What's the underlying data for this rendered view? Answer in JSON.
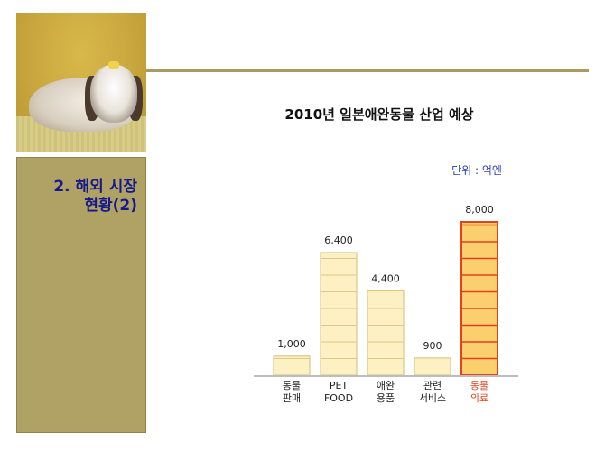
{
  "sidebar": {
    "title_line1": "2. 해외 시장",
    "title_line2": "현황(2)"
  },
  "chart_data": {
    "type": "bar",
    "title": "2010년 일본애완동물 산업 예상",
    "unit": "단위 : 억엔",
    "categories": [
      [
        "동물",
        "판매"
      ],
      [
        "PET",
        "FOOD"
      ],
      [
        "애완",
        "용품"
      ],
      [
        "관련",
        "서비스"
      ],
      [
        "동물",
        "의료"
      ]
    ],
    "values": [
      1000,
      6400,
      4400,
      900,
      8000
    ],
    "value_labels": [
      "1,000",
      "6,400",
      "4,400",
      "900",
      "8,000"
    ],
    "highlight_index": 4,
    "colors": {
      "bar_fill": "#fdf0c2",
      "bar_stroke": "#d9c98a",
      "highlight_fill": "#fbcf6e",
      "highlight_stroke": "#e2431d",
      "axis": "#bdbdbd"
    }
  }
}
